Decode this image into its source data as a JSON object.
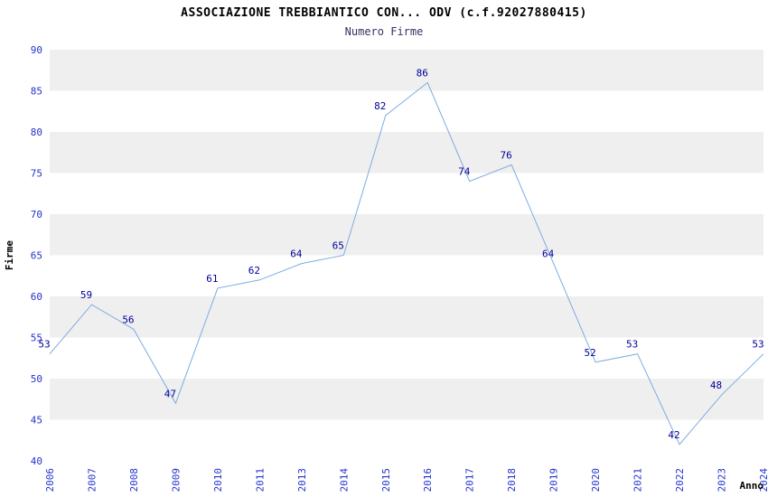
{
  "chart_data": {
    "type": "line",
    "title": "ASSOCIAZIONE TREBBIANTICO CON... ODV (c.f.92027880415)",
    "subtitle": "Numero Firme",
    "xlabel": "Anno",
    "ylabel": "Firme",
    "categories": [
      "2006",
      "2007",
      "2008",
      "2009",
      "2010",
      "2011",
      "2013",
      "2014",
      "2015",
      "2016",
      "2017",
      "2018",
      "2019",
      "2020",
      "2021",
      "2022",
      "2023",
      "2024"
    ],
    "values": [
      53,
      59,
      56,
      47,
      61,
      62,
      64,
      65,
      82,
      86,
      74,
      76,
      64,
      52,
      53,
      42,
      48,
      53
    ],
    "ylim": [
      40,
      90
    ],
    "ytick_step": 5,
    "grid": "alternating-horizontal-bands",
    "legend": "none",
    "line_color": "#7dace0",
    "value_label_color": "#000099",
    "axis_tick_color": "#2233cc",
    "band_color": "#efefef",
    "background_color": "#ffffff"
  }
}
